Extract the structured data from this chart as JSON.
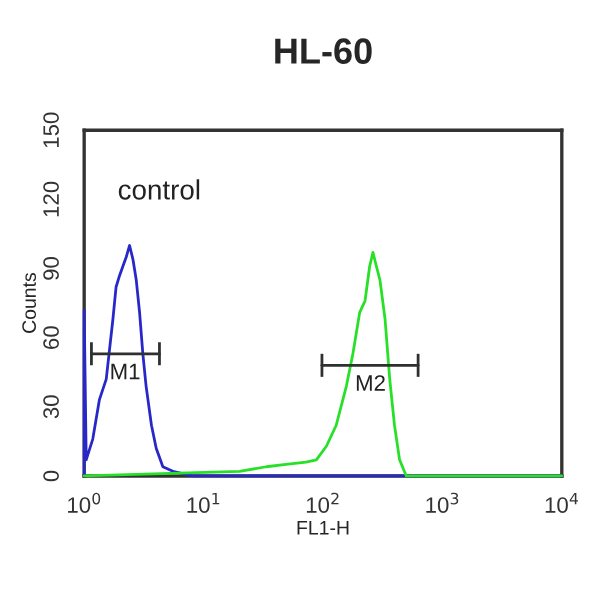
{
  "chart_data": {
    "type": "line",
    "title": "HL-60",
    "xlabel": "FL1-H",
    "ylabel": "Counts",
    "log": "x",
    "grid": false,
    "legend": false,
    "marker": "none",
    "line_style": "solid",
    "xlim": [
      1,
      10000
    ],
    "ylim": [
      0,
      150
    ],
    "xticks": [
      {
        "value": 1,
        "label": "10$^{0}$"
      },
      {
        "value": 10,
        "label": "10$^{1}$"
      },
      {
        "value": 100,
        "label": "10$^{2}$"
      },
      {
        "value": 1000,
        "label": "10$^{3}$"
      },
      {
        "value": 10000,
        "label": "10$^{4}$"
      }
    ],
    "yticks": [
      0,
      30,
      60,
      90,
      120,
      150
    ],
    "annotations": [
      "control",
      {
        "text": "M1",
        "x": 2.2,
        "y": 53
      },
      {
        "text": "M2",
        "x": 250,
        "y": 48
      }
    ],
    "series": [
      {
        "color": "#2828c8",
        "x": [
          1.0,
          1.0,
          1.04,
          1.18,
          1.34,
          1.53,
          1.74,
          1.85,
          1.98,
          2.11,
          2.25,
          2.4,
          2.56,
          2.73,
          2.91,
          3.1,
          3.3,
          3.66,
          4.01,
          4.56,
          5.53,
          8.1,
          11.9,
          10000
        ],
        "values": [
          0,
          72,
          7,
          16,
          33,
          42,
          68,
          82,
          87,
          91,
          95,
          100,
          94,
          85,
          71,
          53,
          39,
          22,
          12,
          4,
          2,
          0,
          0,
          0
        ]
      },
      {
        "color": "#28e028",
        "x": [
          1,
          20.0,
          33.5,
          49,
          72,
          88,
          107,
          129,
          157,
          178,
          203,
          225,
          246,
          262,
          280,
          300,
          331,
          362,
          397,
          438,
          498,
          731,
          10000
        ],
        "values": [
          0,
          2,
          4,
          5,
          6,
          7,
          13,
          22,
          39,
          53,
          71,
          76,
          91,
          97,
          91,
          85,
          68,
          42,
          22,
          7,
          0,
          0,
          0
        ]
      },
      {
        "color": "#303030",
        "x": [
          1.15,
          4.27
        ],
        "values": [
          53,
          53
        ],
        "errors": [
          5,
          5
        ]
      },
      {
        "color": "#303030",
        "x": [
          98,
          626
        ],
        "values": [
          48,
          48
        ],
        "errors": [
          5,
          5
        ]
      }
    ]
  }
}
